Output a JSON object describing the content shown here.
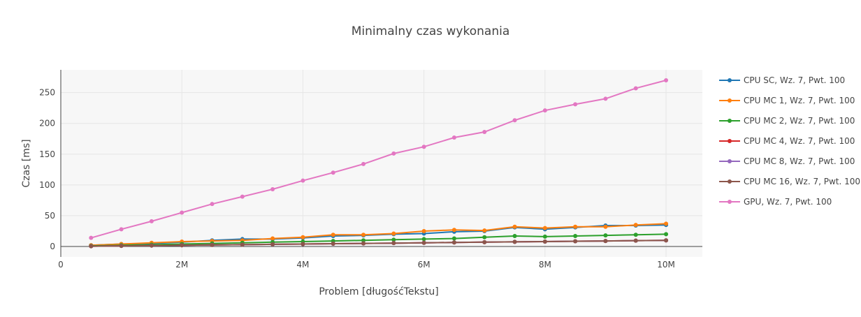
{
  "chart_data": {
    "type": "line",
    "title": "Minimalny czas wykonania",
    "xlabel": "Problem [długośćTekstu]",
    "ylabel": "Czas [ms]",
    "xlim": [
      0,
      10600000
    ],
    "ylim": [
      -17,
      287
    ],
    "x_ticks": [
      {
        "value": 0,
        "label": "0"
      },
      {
        "value": 2000000,
        "label": "2M"
      },
      {
        "value": 4000000,
        "label": "4M"
      },
      {
        "value": 6000000,
        "label": "6M"
      },
      {
        "value": 8000000,
        "label": "8M"
      },
      {
        "value": 10000000,
        "label": "10M"
      }
    ],
    "y_ticks": [
      {
        "value": 0,
        "label": "0"
      },
      {
        "value": 50,
        "label": "50"
      },
      {
        "value": 100,
        "label": "100"
      },
      {
        "value": 150,
        "label": "150"
      },
      {
        "value": 200,
        "label": "200"
      },
      {
        "value": 250,
        "label": "250"
      }
    ],
    "grid": true,
    "legend": "right",
    "x": [
      500000,
      1000000,
      1500000,
      2000000,
      2500000,
      3000000,
      3500000,
      4000000,
      4500000,
      5000000,
      5500000,
      6000000,
      6500000,
      7000000,
      7500000,
      8000000,
      8500000,
      9000000,
      9500000,
      10000000
    ],
    "series": [
      {
        "name": "CPU SC, Wz. 7, Pwt. 100",
        "color": "#1f77b4",
        "values": [
          2,
          4,
          5,
          7,
          10,
          12,
          12,
          14,
          17,
          18,
          20,
          21,
          24,
          25,
          31,
          28,
          31,
          34,
          34,
          35
        ]
      },
      {
        "name": "CPU MC 1, Wz. 7, Pwt. 100",
        "color": "#ff7f0e",
        "values": [
          2,
          4,
          6,
          8,
          9,
          10,
          13,
          15,
          19,
          19,
          21,
          25,
          27,
          26,
          32,
          30,
          32,
          32,
          35,
          37
        ]
      },
      {
        "name": "CPU MC 2, Wz. 7, Pwt. 100",
        "color": "#2ca02c",
        "values": [
          1,
          2,
          3,
          4,
          5,
          6,
          7,
          8,
          9,
          10,
          11,
          12,
          13,
          15,
          17,
          16,
          17,
          18,
          19,
          20
        ]
      },
      {
        "name": "CPU MC 4, Wz. 7, Pwt. 100",
        "color": "#d62728",
        "values": [
          0.5,
          1,
          1.5,
          2,
          2.5,
          3,
          3.5,
          4,
          4.5,
          5,
          5.5,
          6,
          6.5,
          7,
          7.5,
          8,
          8.5,
          9,
          9.5,
          10
        ]
      },
      {
        "name": "CPU MC 8, Wz. 7, Pwt. 100",
        "color": "#9467bd",
        "values": [
          0.5,
          1,
          1.5,
          2,
          2.5,
          3,
          3.5,
          4,
          4.5,
          5,
          5.5,
          6,
          6.5,
          7,
          7.5,
          8,
          8.5,
          9,
          9.5,
          10
        ]
      },
      {
        "name": "CPU MC 16, Wz. 7, Pwt. 100",
        "color": "#8c564b",
        "values": [
          0.5,
          1,
          1.5,
          2,
          2.5,
          3,
          3.5,
          4,
          4.5,
          5,
          5.5,
          6,
          6.5,
          7,
          7.5,
          8,
          8.5,
          9,
          9.5,
          10
        ]
      },
      {
        "name": "GPU, Wz. 7, Pwt. 100",
        "color": "#e377c2",
        "values": [
          14,
          28,
          41,
          55,
          69,
          81,
          93,
          107,
          120,
          134,
          151,
          162,
          177,
          186,
          205,
          221,
          231,
          240,
          257,
          270
        ]
      }
    ]
  }
}
